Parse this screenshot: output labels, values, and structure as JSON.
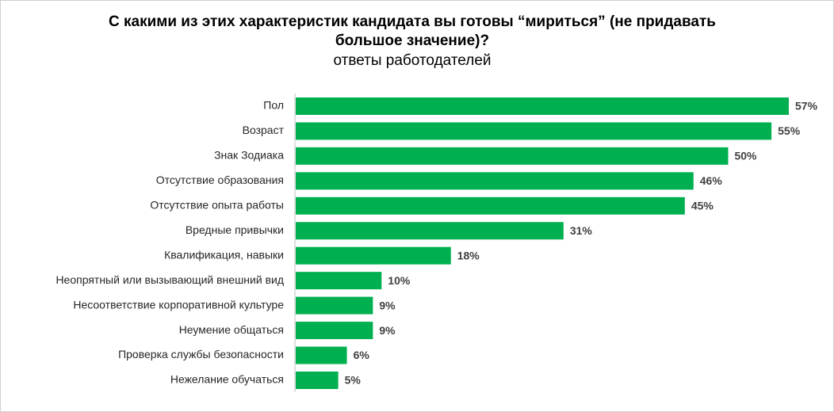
{
  "chart_data": {
    "type": "bar",
    "orientation": "horizontal",
    "title": "С какими из этих характеристик кандидата вы готовы “мириться” (не придавать большое значение)?",
    "subtitle": "ответы работодателей",
    "categories": [
      "Пол",
      "Возраст",
      "Знак Зодиака",
      "Отсутствие образования",
      "Отсутствие опыта работы",
      "Вредные привычки",
      "Квалификация, навыки",
      "Неопрятный или вызывающий внешний вид",
      "Несоответствие корпоративной культуре",
      "Неумение общаться",
      "Проверка службы безопасности",
      "Нежелание обучаться"
    ],
    "values": [
      57,
      55,
      50,
      46,
      45,
      31,
      18,
      10,
      9,
      9,
      6,
      5
    ],
    "value_labels": [
      "57%",
      "55%",
      "50%",
      "46%",
      "45%",
      "31%",
      "18%",
      "10%",
      "9%",
      "9%",
      "6%",
      "5%"
    ],
    "color": "#00b050"
  }
}
